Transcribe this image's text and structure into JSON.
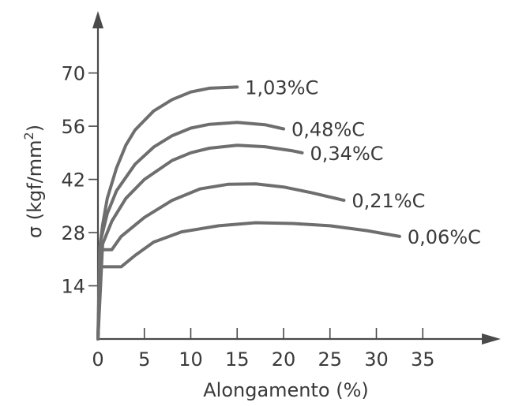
{
  "chart_data": {
    "type": "line",
    "title": "",
    "xlabel": "Alongamento (%)",
    "ylabel_main": "σ (kgf/mm",
    "ylabel_sup": "2",
    "ylabel_end": ")",
    "xlim": [
      0,
      35
    ],
    "ylim": [
      0,
      70
    ],
    "grid": false,
    "x_ticks": [
      0,
      5,
      10,
      15,
      20,
      25,
      30,
      35
    ],
    "x_tick_labels": [
      "0",
      "5",
      "10",
      "15",
      "20",
      "25",
      "30",
      "35"
    ],
    "y_ticks": [
      14,
      28,
      42,
      56,
      70
    ],
    "y_tick_labels": [
      "14",
      "28",
      "42",
      "56",
      "70"
    ],
    "series": [
      {
        "name": "1,03%C",
        "points": [
          [
            0,
            0
          ],
          [
            0.2,
            24
          ],
          [
            0.5,
            30
          ],
          [
            1,
            37
          ],
          [
            2,
            45
          ],
          [
            3,
            51
          ],
          [
            4,
            55
          ],
          [
            6,
            60
          ],
          [
            8,
            63
          ],
          [
            10,
            65
          ],
          [
            12,
            66
          ],
          [
            15,
            66.3
          ]
        ]
      },
      {
        "name": "0,48%C",
        "points": [
          [
            0,
            0
          ],
          [
            0.3,
            26
          ],
          [
            1,
            33
          ],
          [
            2,
            39
          ],
          [
            4,
            46
          ],
          [
            6,
            50.5
          ],
          [
            8,
            53.5
          ],
          [
            10,
            55.5
          ],
          [
            12,
            56.5
          ],
          [
            15,
            57
          ],
          [
            18,
            56.4
          ],
          [
            20,
            55.3
          ]
        ]
      },
      {
        "name": "0,34%C",
        "points": [
          [
            0,
            0
          ],
          [
            0.5,
            25
          ],
          [
            1.5,
            31
          ],
          [
            3,
            37
          ],
          [
            5,
            42
          ],
          [
            8,
            47
          ],
          [
            10,
            49
          ],
          [
            12,
            50.2
          ],
          [
            15,
            51
          ],
          [
            18,
            50.6
          ],
          [
            21,
            49.5
          ],
          [
            22,
            49
          ]
        ]
      },
      {
        "name": "0,21%C",
        "points": [
          [
            0,
            0
          ],
          [
            0.3,
            23.5
          ],
          [
            1.5,
            23.5
          ],
          [
            2.5,
            27
          ],
          [
            5,
            32
          ],
          [
            8,
            36.5
          ],
          [
            11,
            39.5
          ],
          [
            14,
            40.7
          ],
          [
            17,
            40.8
          ],
          [
            20,
            40
          ],
          [
            23,
            38.5
          ],
          [
            26.5,
            36.5
          ]
        ]
      },
      {
        "name": "0,06%C",
        "points": [
          [
            0,
            0
          ],
          [
            0.3,
            19
          ],
          [
            2.5,
            19
          ],
          [
            4,
            22
          ],
          [
            6,
            25.5
          ],
          [
            9,
            28.2
          ],
          [
            13,
            29.8
          ],
          [
            17,
            30.6
          ],
          [
            21,
            30.4
          ],
          [
            25,
            29.8
          ],
          [
            29,
            28.5
          ],
          [
            32.5,
            27
          ]
        ]
      }
    ]
  }
}
